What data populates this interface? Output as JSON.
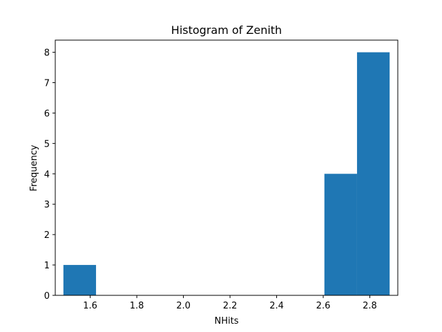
{
  "chart_data": {
    "type": "bar",
    "title": "Histogram of Zenith",
    "xlabel": "NHits",
    "ylabel": "Frequency",
    "xlim": [
      1.45,
      2.92
    ],
    "ylim": [
      0,
      8.4
    ],
    "x_ticks": [
      1.6,
      1.8,
      2.0,
      2.2,
      2.4,
      2.6,
      2.8
    ],
    "x_tick_labels": [
      "1.6",
      "1.8",
      "2.0",
      "2.2",
      "2.4",
      "2.6",
      "2.8"
    ],
    "y_ticks": [
      0,
      1,
      2,
      3,
      4,
      5,
      6,
      7,
      8
    ],
    "y_tick_labels": [
      "0",
      "1",
      "2",
      "3",
      "4",
      "5",
      "6",
      "7",
      "8"
    ],
    "bin_edges": [
      1.485,
      1.625,
      1.765,
      1.905,
      2.045,
      2.185,
      2.325,
      2.465,
      2.605,
      2.745,
      2.885
    ],
    "values": [
      1,
      0,
      0,
      0,
      0,
      0,
      0,
      0,
      4,
      8
    ],
    "bar_color": "#1f77b4",
    "grid": false,
    "legend": "none"
  }
}
